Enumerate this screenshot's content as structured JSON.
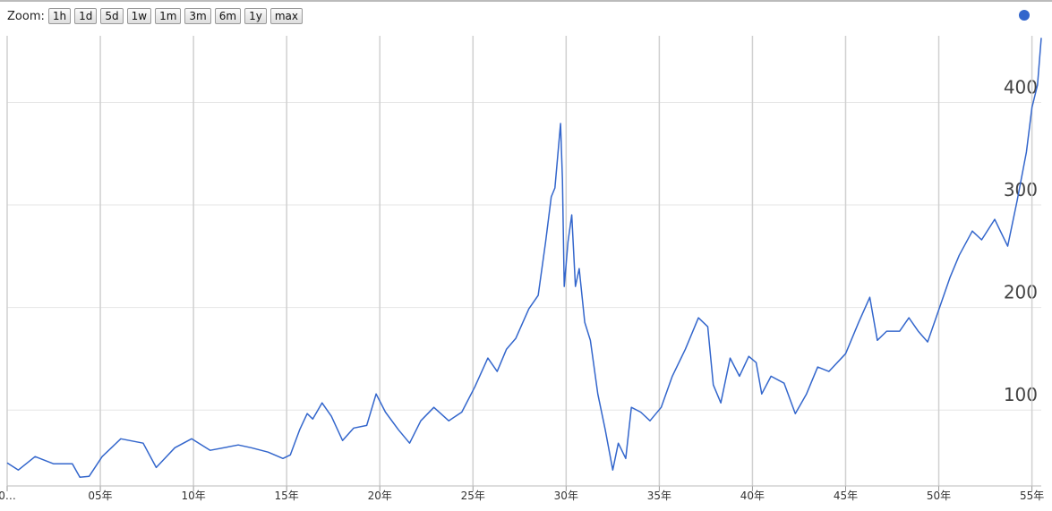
{
  "zoom_label": "Zoom:",
  "zoom_buttons": [
    "1h",
    "1d",
    "5d",
    "1w",
    "1m",
    "3m",
    "6m",
    "1y",
    "max"
  ],
  "chart_data": {
    "type": "line",
    "xlim": [
      0,
      55.5
    ],
    "ylim": [
      26,
      465
    ],
    "xticks": [
      {
        "value": 0,
        "label": "0…"
      },
      {
        "value": 5,
        "label": "05年"
      },
      {
        "value": 10,
        "label": "10年"
      },
      {
        "value": 15,
        "label": "15年"
      },
      {
        "value": 20,
        "label": "20年"
      },
      {
        "value": 25,
        "label": "25年"
      },
      {
        "value": 30,
        "label": "30年"
      },
      {
        "value": 35,
        "label": "35年"
      },
      {
        "value": 40,
        "label": "40年"
      },
      {
        "value": 45,
        "label": "45年"
      },
      {
        "value": 50,
        "label": "50年"
      },
      {
        "value": 55,
        "label": "55年"
      }
    ],
    "yticks": [
      100,
      200,
      300,
      400
    ],
    "grid": true,
    "x": [
      0,
      0.6,
      1.5,
      2.5,
      3.5,
      3.9,
      4.4,
      5.1,
      6.1,
      7.3,
      8.0,
      9.0,
      9.9,
      10.9,
      12.4,
      13.1,
      14.0,
      14.8,
      15.2,
      15.7,
      16.1,
      16.4,
      16.9,
      17.4,
      18.0,
      18.6,
      19.3,
      19.8,
      20.3,
      21.0,
      21.6,
      22.2,
      22.9,
      23.7,
      24.4,
      25.1,
      25.8,
      26.3,
      26.8,
      27.3,
      28.0,
      28.5,
      28.9,
      29.2,
      29.4,
      29.7,
      29.8,
      29.9,
      30.1,
      30.3,
      30.5,
      30.7,
      31.0,
      31.3,
      31.7,
      32.1,
      32.5,
      32.8,
      33.2,
      33.5,
      34.0,
      34.5,
      35.1,
      35.7,
      36.4,
      37.1,
      37.6,
      37.9,
      38.3,
      38.8,
      39.3,
      39.8,
      40.2,
      40.5,
      41.0,
      41.7,
      42.3,
      42.9,
      43.5,
      44.1,
      45.0,
      45.7,
      46.3,
      46.7,
      47.2,
      47.9,
      48.4,
      48.9,
      49.4,
      50.1,
      50.6,
      51.1,
      51.8,
      52.3,
      53.0,
      53.7,
      54.2,
      54.7,
      55.0,
      55.3,
      55.5
    ],
    "series": [
      {
        "color": "#3366cc",
        "values": [
          48.5,
          41.5,
          54.6,
          47.6,
          47.6,
          34.5,
          35.4,
          54.6,
          72,
          67.7,
          44,
          63.3,
          72,
          60.7,
          66,
          63.3,
          59,
          52.8,
          56.3,
          80.8,
          96.5,
          91.3,
          107,
          94,
          70.3,
          82.5,
          85,
          115.7,
          98,
          80.8,
          67.7,
          89.5,
          102.6,
          89.5,
          98,
          122.7,
          150.7,
          137.6,
          159.4,
          169.9,
          198.7,
          211.8,
          264,
          307.9,
          316.6,
          379.5,
          325,
          220.5,
          264,
          290.4,
          220.5,
          238,
          185.6,
          168,
          115.7,
          80.8,
          41.5,
          67.7,
          52.8,
          102.6,
          98,
          89.5,
          102.6,
          133,
          159.4,
          190,
          181.3,
          124.5,
          107,
          150.7,
          133,
          152.4,
          146.3,
          115.7,
          133,
          126.2,
          96.5,
          115.7,
          142,
          137.6,
          155,
          185.6,
          210,
          168,
          176.9,
          176.9,
          190,
          176.9,
          166.4,
          203,
          229.2,
          251,
          274.6,
          266,
          286,
          259.8,
          303.5,
          351.5,
          395,
          417,
          463
        ]
      }
    ]
  }
}
